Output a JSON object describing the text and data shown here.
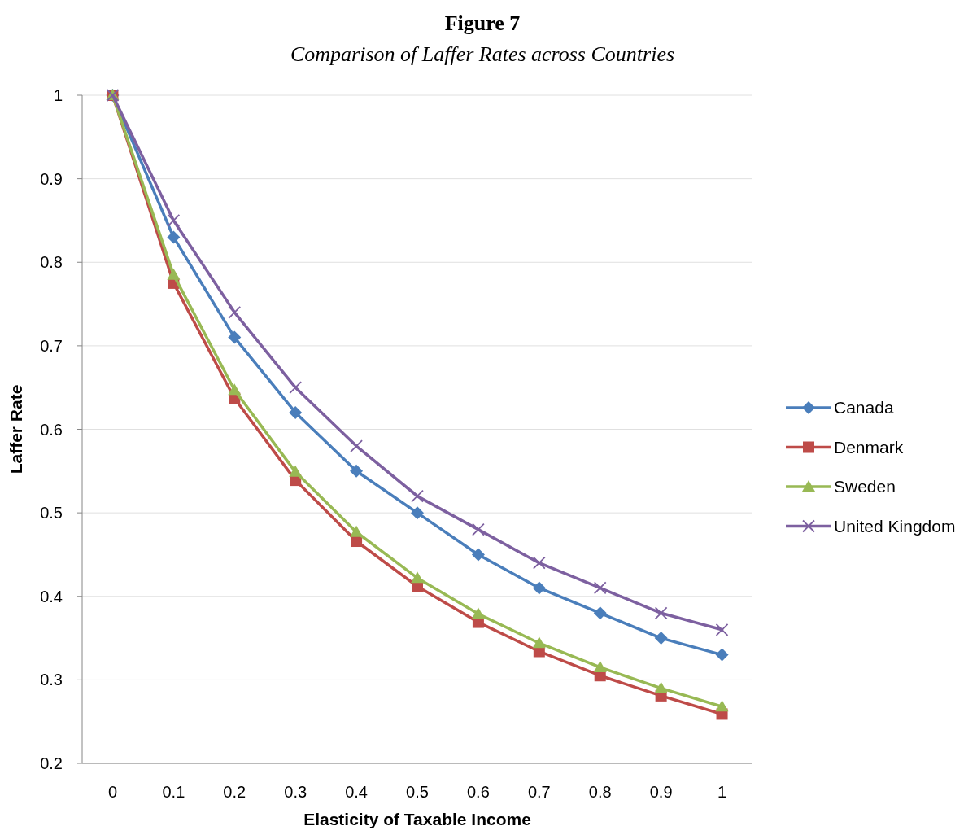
{
  "chart_data": {
    "type": "line",
    "title": "Figure 7",
    "subtitle": "Comparison of Laffer Rates across Countries",
    "xlabel": "Elasticity of Taxable Income",
    "ylabel": "Laffer Rate",
    "categories": [
      "0",
      "0.1",
      "0.2",
      "0.3",
      "0.4",
      "0.5",
      "0.6",
      "0.7",
      "0.8",
      "0.9",
      "1"
    ],
    "series": [
      {
        "name": "Canada",
        "color": "#4a7ebb",
        "marker": "diamond",
        "values": [
          1,
          0.83,
          0.71,
          0.62,
          0.55,
          0.5,
          0.45,
          0.41,
          0.38,
          0.35,
          0.33
        ]
      },
      {
        "name": "Denmark",
        "color": "#be4b48",
        "marker": "square",
        "values": [
          1,
          0.775,
          0.637,
          0.539,
          0.466,
          0.412,
          0.369,
          0.334,
          0.305,
          0.281,
          0.259
        ]
      },
      {
        "name": "Sweden",
        "color": "#98b954",
        "marker": "triangle",
        "values": [
          1,
          0.785,
          0.647,
          0.549,
          0.477,
          0.422,
          0.379,
          0.344,
          0.315,
          0.29,
          0.268
        ]
      },
      {
        "name": "United Kingdom",
        "color": "#7d60a0",
        "marker": "cross",
        "values": [
          1,
          0.85,
          0.74,
          0.65,
          0.58,
          0.52,
          0.48,
          0.44,
          0.41,
          0.38,
          0.36
        ]
      }
    ],
    "ylim": [
      0.2,
      1
    ],
    "yticks": [
      0.2,
      0.3,
      0.4,
      0.5,
      0.6,
      0.7,
      0.8,
      0.9,
      1
    ],
    "grid": "y",
    "legend": "right"
  }
}
